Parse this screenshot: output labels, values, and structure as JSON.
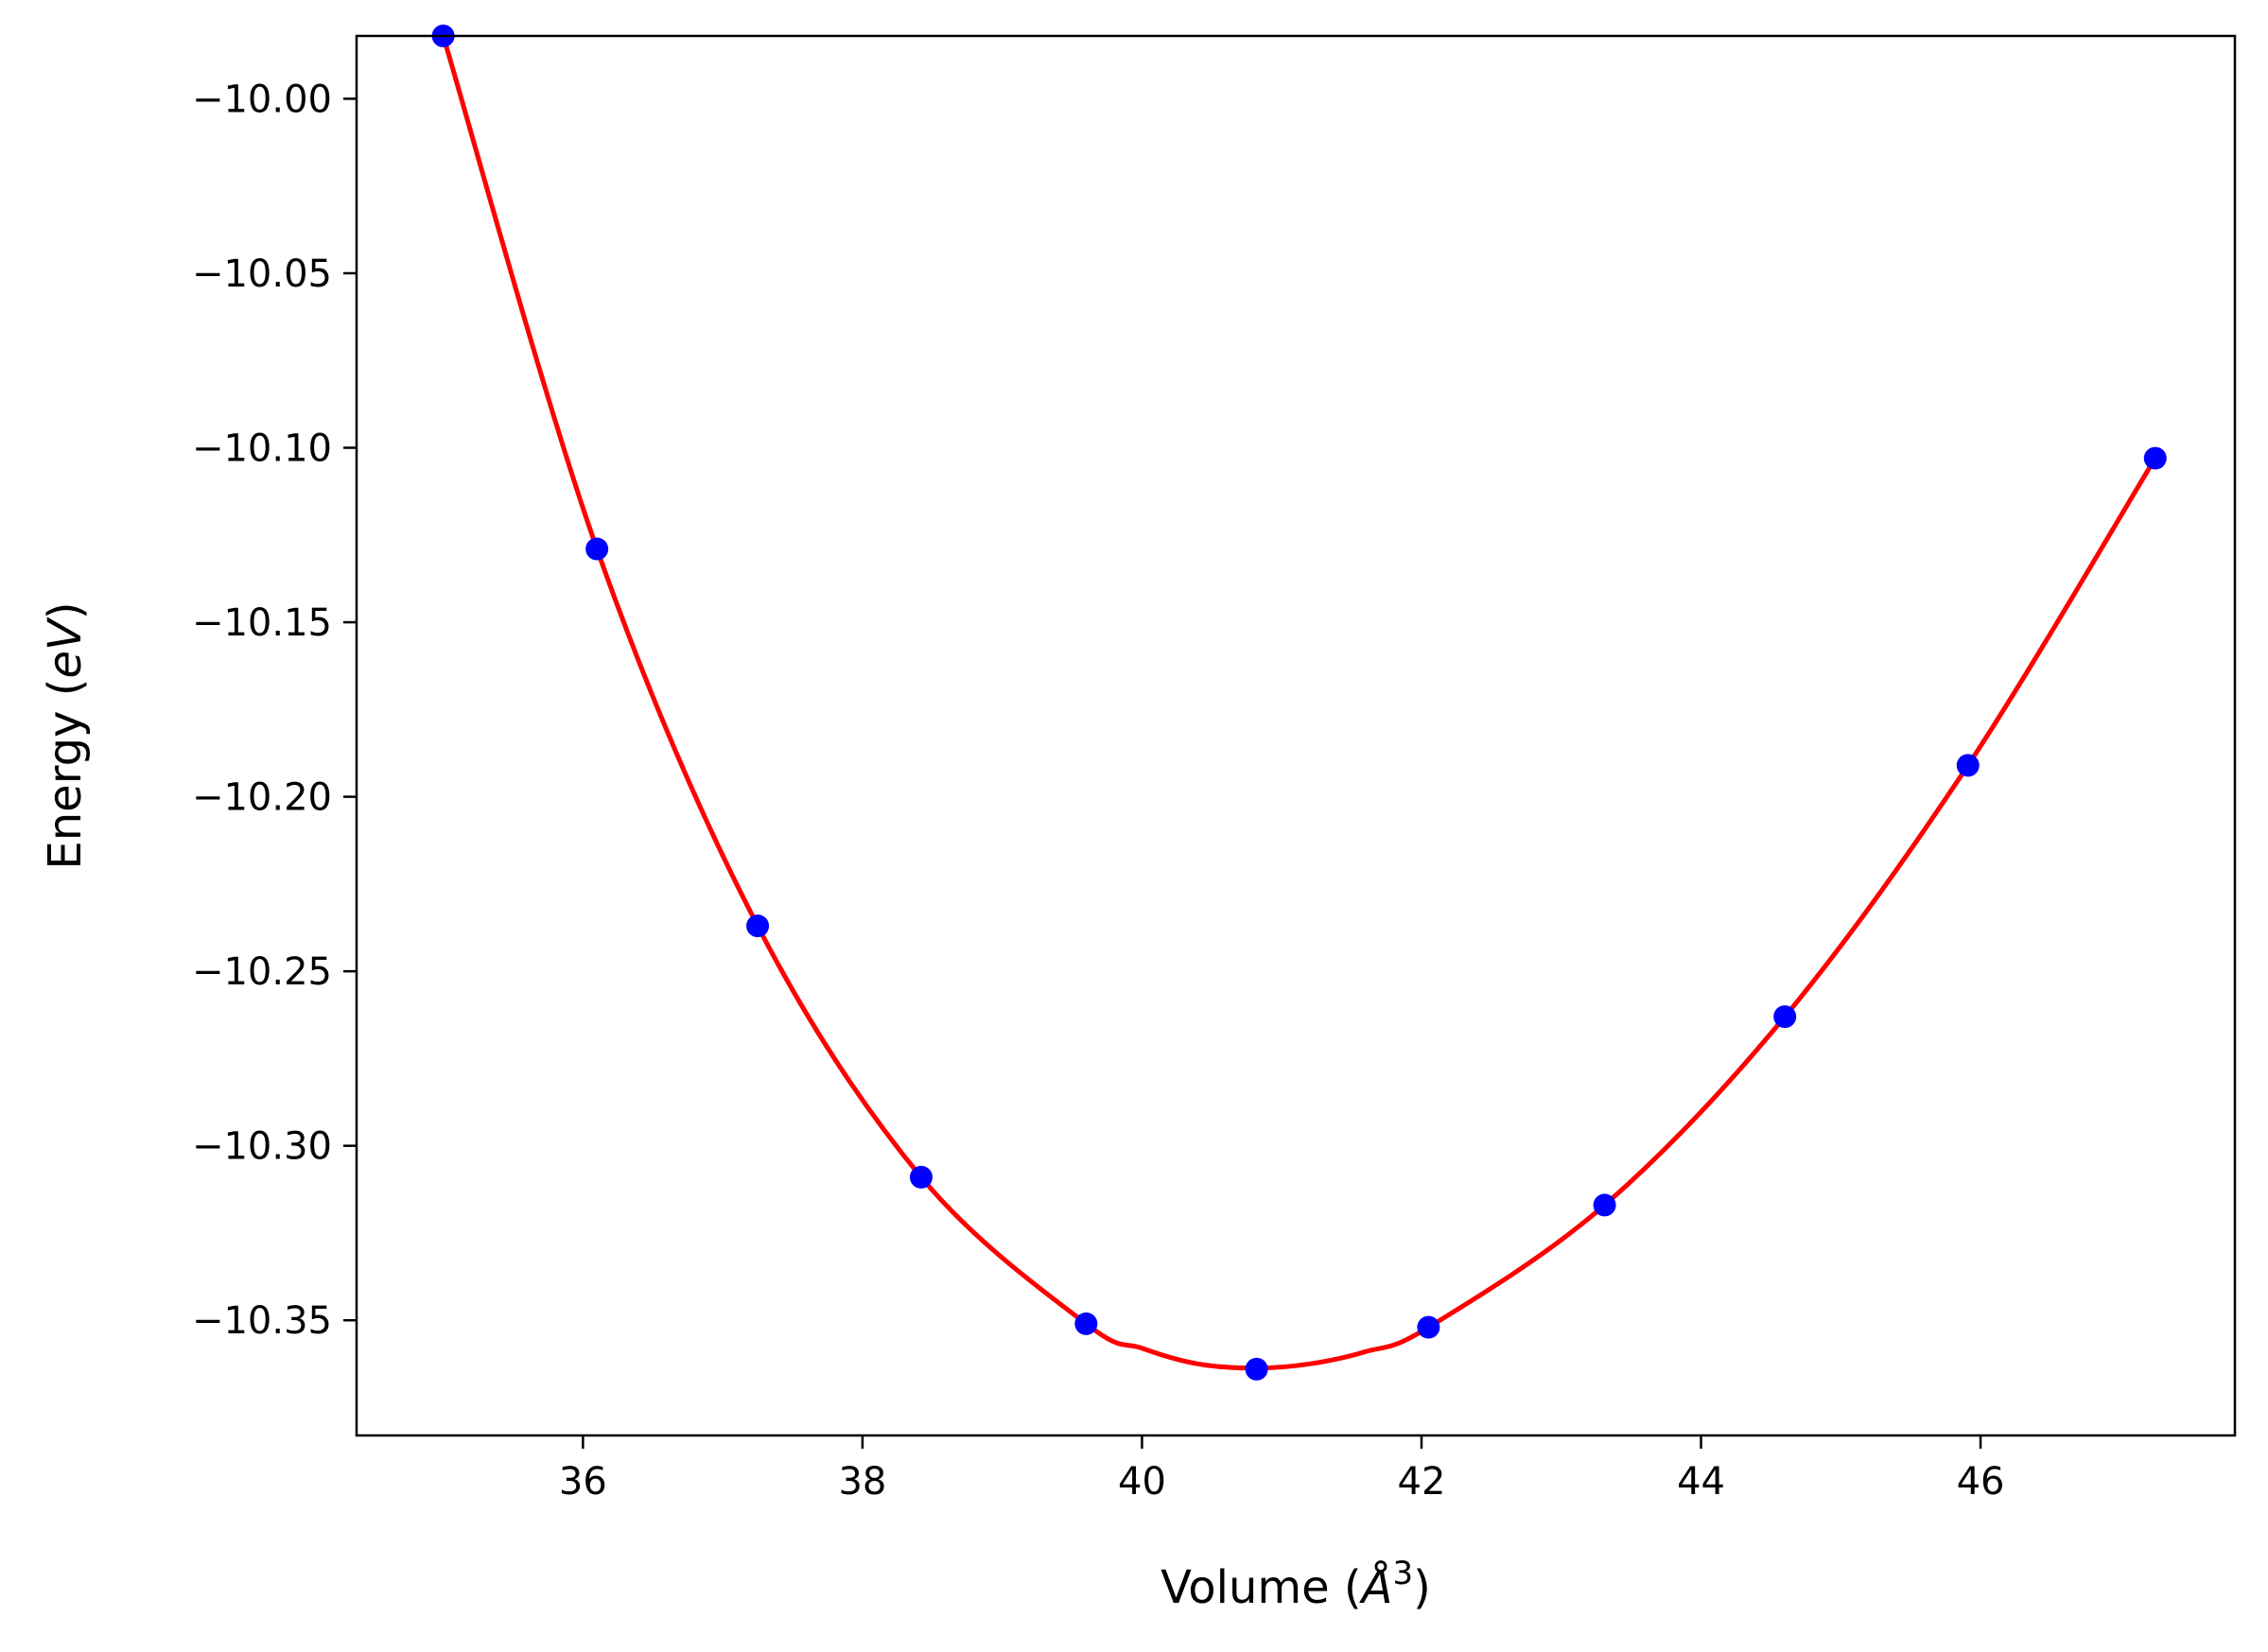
{
  "chart_data": {
    "type": "line",
    "xlabel_parts": {
      "prefix": "Volume (",
      "unit": "Å",
      "exponent": "3",
      "suffix": ")"
    },
    "ylabel_parts": {
      "prefix": "Energy (",
      "unit": "eV",
      "suffix": ")"
    },
    "xlim": [
      34.38,
      47.82
    ],
    "ylim": [
      -10.383,
      -9.982
    ],
    "xticks": [
      36,
      38,
      40,
      42,
      44,
      46
    ],
    "xtick_labels": [
      "36",
      "38",
      "40",
      "42",
      "44",
      "46"
    ],
    "yticks": [
      -10.35,
      -10.3,
      -10.25,
      -10.2,
      -10.15,
      -10.1,
      -10.05,
      -10.0
    ],
    "ytick_labels": [
      "−10.35",
      "−10.30",
      "−10.25",
      "−10.20",
      "−10.15",
      "−10.10",
      "−10.05",
      "−10.00"
    ],
    "grid": false,
    "series": [
      {
        "style": "markers",
        "color": "#0000ff",
        "x": [
          35.0,
          36.1,
          37.25,
          38.42,
          39.6,
          40.82,
          42.05,
          43.31,
          44.6,
          45.91,
          47.25
        ],
        "y": [
          -9.982,
          -10.129,
          -10.237,
          -10.309,
          -10.351,
          -10.364,
          -10.352,
          -10.317,
          -10.263,
          -10.191,
          -10.103
        ]
      },
      {
        "style": "fit-line",
        "color": "#ff0000",
        "x": [
          35.0,
          36.1,
          37.25,
          38.42,
          39.6,
          40.0,
          40.4,
          40.82,
          41.2,
          41.6,
          42.05,
          43.31,
          44.6,
          45.91,
          47.25
        ],
        "y": [
          -9.982,
          -10.129,
          -10.237,
          -10.309,
          -10.351,
          -10.358,
          -10.3625,
          -10.3637,
          -10.3625,
          -10.359,
          -10.352,
          -10.317,
          -10.263,
          -10.191,
          -10.103
        ]
      }
    ]
  }
}
